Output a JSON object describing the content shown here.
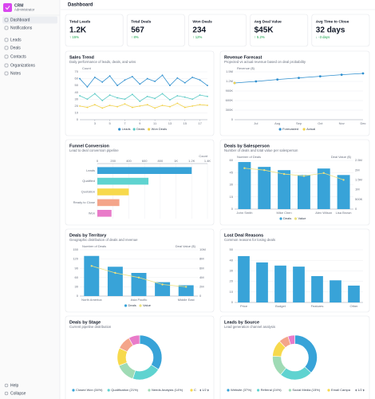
{
  "sidebar": {
    "brand": "CRM",
    "role": "Administrator",
    "items": [
      "Dashboard",
      "Notifications",
      "Leads",
      "Deals",
      "Contacts",
      "Organizations",
      "Notes"
    ],
    "footer": [
      "Help",
      "Collapse"
    ]
  },
  "header": {
    "title": "Dashboard"
  },
  "kpis": [
    {
      "label": "Total Leads",
      "value": "1.2K",
      "change": "↑ 15%",
      "color": "#16a34a"
    },
    {
      "label": "Total Deals",
      "value": "567",
      "change": "↑ 8%",
      "color": "#16a34a"
    },
    {
      "label": "Won Deals",
      "value": "234",
      "change": "↑ 12%",
      "color": "#16a34a"
    },
    {
      "label": "Avg Deal Value",
      "value": "$45K",
      "change": "↑ 5.2%",
      "color": "#16a34a"
    },
    {
      "label": "Avg Time to Close",
      "value": "32 days",
      "change": "↓ -3 days",
      "color": "#16a34a"
    }
  ],
  "chart_data": [
    {
      "type": "line",
      "title": "Sales Trend",
      "subtitle": "Daily performance of leads, deals, and wins",
      "y_label": "Count",
      "x": [
        1,
        2,
        3,
        4,
        5,
        6,
        7,
        8,
        9,
        10,
        11,
        12,
        13,
        14,
        15,
        16,
        17,
        18
      ],
      "xlim": [
        1,
        18
      ],
      "xticks": [
        3,
        5,
        7,
        9,
        11,
        13,
        15,
        17
      ],
      "ylim": [
        0,
        70
      ],
      "yticks": [
        0,
        10,
        20,
        30,
        40,
        50,
        60,
        70
      ],
      "grid": true,
      "legend": "bottom",
      "series": [
        {
          "name": "Leads",
          "color": "#2f8fcf",
          "values": [
            60,
            48,
            62,
            55,
            64,
            50,
            58,
            63,
            52,
            60,
            56,
            65,
            50,
            61,
            54,
            62,
            58,
            50
          ]
        },
        {
          "name": "Deals",
          "color": "#5ccac6",
          "values": [
            35,
            30,
            38,
            28,
            36,
            32,
            30,
            37,
            27,
            34,
            31,
            38,
            29,
            35,
            33,
            30,
            36,
            34
          ]
        },
        {
          "name": "Won Deals",
          "color": "#f2d24a",
          "values": [
            20,
            18,
            22,
            17,
            21,
            19,
            23,
            18,
            20,
            22,
            17,
            21,
            19,
            24,
            18,
            20,
            22,
            21
          ]
        }
      ]
    },
    {
      "type": "line",
      "title": "Revenue Forecast",
      "subtitle": "Projected vs actual revenue based on deal probability",
      "y_label": "Revenue ($)",
      "categories": [
        null,
        "Jul",
        "Aug",
        "Sep",
        "Oct",
        "Nov",
        "Dec"
      ],
      "ylim": [
        0,
        1500000
      ],
      "yticks": [
        0,
        {
          "value": 300000,
          "label": "300K"
        },
        {
          "value": 600000,
          "label": "600K"
        },
        {
          "value": 900000,
          "label": "900K"
        },
        {
          "value": 1200000,
          "label": "1.2M"
        },
        {
          "value": 1500000,
          "label": "1.5M"
        }
      ],
      "grid": true,
      "legend": "bottom",
      "series": [
        {
          "name": "Forecasted",
          "color": "#2f8fcf",
          "values": [
            1150000,
            1200000,
            1260000,
            1310000,
            1360000,
            1410000,
            1450000
          ]
        },
        {
          "name": "Actual",
          "color": "#f2d24a",
          "values": [
            1150000,
            null,
            null,
            null,
            null,
            null,
            null
          ]
        }
      ]
    },
    {
      "type": "bar",
      "orientation": "horizontal",
      "title": "Funnel Conversion",
      "subtitle": "Lead to deal conversion pipeline",
      "x_label": "Count",
      "categories": [
        "Leads",
        "Qualified",
        "Quotation",
        "Ready to Close",
        "Won"
      ],
      "values": [
        1200,
        650,
        400,
        280,
        180
      ],
      "colors": [
        "#38a3d8",
        "#5fd3d0",
        "#f7d94c",
        "#f4a58a",
        "#e97bc9"
      ],
      "xlim": [
        0,
        1400
      ],
      "xticks": [
        0,
        200,
        400,
        600,
        800,
        {
          "value": 1000,
          "label": "1K"
        },
        {
          "value": 1200,
          "label": "1.2K"
        },
        {
          "value": 1400,
          "label": "1.4K"
        }
      ],
      "grid": true
    },
    {
      "type": "bar",
      "title": "Deals by Salesperson",
      "subtitle": "Number of deals and total value per salesperson",
      "y_label": "Number of Deals",
      "y2_label": "Deal Value ($)",
      "categories": [
        "John Smith",
        null,
        "Mike Chen",
        null,
        "Alex Wilson",
        "Lisa Brown"
      ],
      "ylim": [
        0,
        60
      ],
      "yticks": [
        0,
        15,
        30,
        45,
        60
      ],
      "y2lim": [
        0,
        2500000
      ],
      "y2ticks": [
        0,
        {
          "value": 500000,
          "label": "500K"
        },
        {
          "value": 1000000,
          "label": "1M"
        },
        {
          "value": 1500000,
          "label": "1.5M"
        },
        {
          "value": 2000000,
          "label": "2M"
        },
        {
          "value": 2500000,
          "label": "2.5M"
        }
      ],
      "grid": true,
      "legend": "bottom",
      "series": [
        {
          "name": "Deals",
          "color": "#38a3d8",
          "values": [
            58,
            52,
            48,
            42,
            50,
            42
          ]
        },
        {
          "name": "Value",
          "color": "#ebe07e",
          "type": "line",
          "axis": "y2",
          "values": [
            2100000,
            2000000,
            1800000,
            1700000,
            1850000,
            1500000
          ]
        }
      ]
    },
    {
      "type": "bar",
      "title": "Deals by Territory",
      "subtitle": "Geographic distribution of deals and revenue",
      "y_label": "Number of Deals",
      "y2_label": "Deal Value ($)",
      "categories": [
        "North America",
        null,
        "Asia Pacific",
        null,
        "Middle East"
      ],
      "ylim": [
        0,
        150
      ],
      "yticks": [
        0,
        30,
        60,
        90,
        120,
        150
      ],
      "y2lim": [
        0,
        10000000
      ],
      "y2ticks": [
        0,
        {
          "value": 2000000,
          "label": "2M"
        },
        {
          "value": 4000000,
          "label": "4M"
        },
        {
          "value": 6000000,
          "label": "6M"
        },
        {
          "value": 8000000,
          "label": "8M"
        },
        {
          "value": 10000000,
          "label": "10M"
        }
      ],
      "grid": true,
      "legend": "bottom",
      "series": [
        {
          "name": "Deals",
          "color": "#38a3d8",
          "values": [
            130,
            95,
            75,
            45,
            35
          ]
        },
        {
          "name": "Value",
          "color": "#ebe07e",
          "type": "line",
          "axis": "y2",
          "values": [
            6500000,
            5000000,
            4000000,
            2500000,
            2000000
          ]
        }
      ]
    },
    {
      "type": "bar",
      "title": "Lost Deal Reasons",
      "subtitle": "Common reasons for losing deals",
      "categories": [
        "Price",
        null,
        "Budget",
        null,
        "Features",
        null,
        "Other"
      ],
      "values": [
        44,
        38,
        35,
        34,
        25,
        21,
        16
      ],
      "color": "#38a3d8",
      "ylim": [
        0,
        50
      ],
      "yticks": [
        0,
        10,
        20,
        30,
        40,
        50
      ],
      "grid": true
    },
    {
      "type": "pie",
      "title": "Deals by Stage",
      "subtitle": "Current pipeline distribution",
      "donut": true,
      "labels": [
        "Closed Won (34%)",
        "Qualification (21%)",
        "Needs Analysis (14%)",
        "C",
        null,
        null
      ],
      "values": [
        34,
        21,
        14,
        13,
        10,
        8
      ],
      "colors": [
        "#38a3d8",
        "#5fd3d0",
        "#9fdbb5",
        "#f7d94c",
        "#f4a58a",
        "#e97bc9"
      ],
      "legend": "bottom",
      "pager": "1/2"
    },
    {
      "type": "pie",
      "title": "Leads by Source",
      "subtitle": "Lead generation channel analysis",
      "donut": true,
      "labels": [
        "Website (37%)",
        "Referral (24%)",
        "Social Media (15%)",
        "Email Campa",
        null,
        null
      ],
      "values": [
        37,
        24,
        15,
        12,
        7,
        5
      ],
      "colors": [
        "#38a3d8",
        "#5fd3d0",
        "#9fdbb5",
        "#f7d94c",
        "#f4a58a",
        "#e97bc9"
      ],
      "legend": "bottom",
      "pager": "1/2"
    }
  ]
}
